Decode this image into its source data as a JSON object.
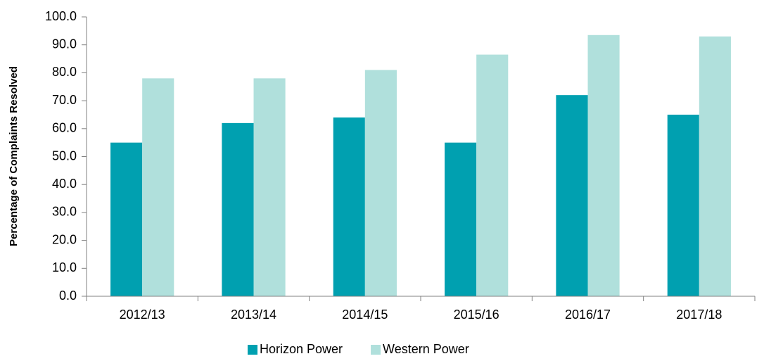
{
  "chart_data": {
    "type": "bar",
    "y_label": "Percentage of Complaints Resolved",
    "categories": [
      "2012/13",
      "2013/14",
      "2014/15",
      "2015/16",
      "2016/17",
      "2017/18"
    ],
    "series": [
      {
        "name": "Horizon Power",
        "color": "#00a0b0",
        "values": [
          55,
          62,
          64,
          55,
          72,
          65
        ]
      },
      {
        "name": "Western Power",
        "color": "#b0e0dc",
        "values": [
          78,
          78,
          81,
          86.5,
          93.5,
          93
        ]
      }
    ],
    "ylim": [
      0,
      100
    ],
    "yticks": [
      {
        "value": 0,
        "label": "0.0"
      },
      {
        "value": 10,
        "label": "10.0"
      },
      {
        "value": 20,
        "label": "20.0"
      },
      {
        "value": 30,
        "label": "30.0"
      },
      {
        "value": 40,
        "label": "40.0"
      },
      {
        "value": 50,
        "label": "50.0"
      },
      {
        "value": 60,
        "label": "60.0"
      },
      {
        "value": 70,
        "label": "70.0"
      },
      {
        "value": 80,
        "label": "80.0"
      },
      {
        "value": 90,
        "label": "90.0"
      },
      {
        "value": 100,
        "label": "100.0"
      }
    ],
    "grid": false,
    "legend": "bottom"
  }
}
